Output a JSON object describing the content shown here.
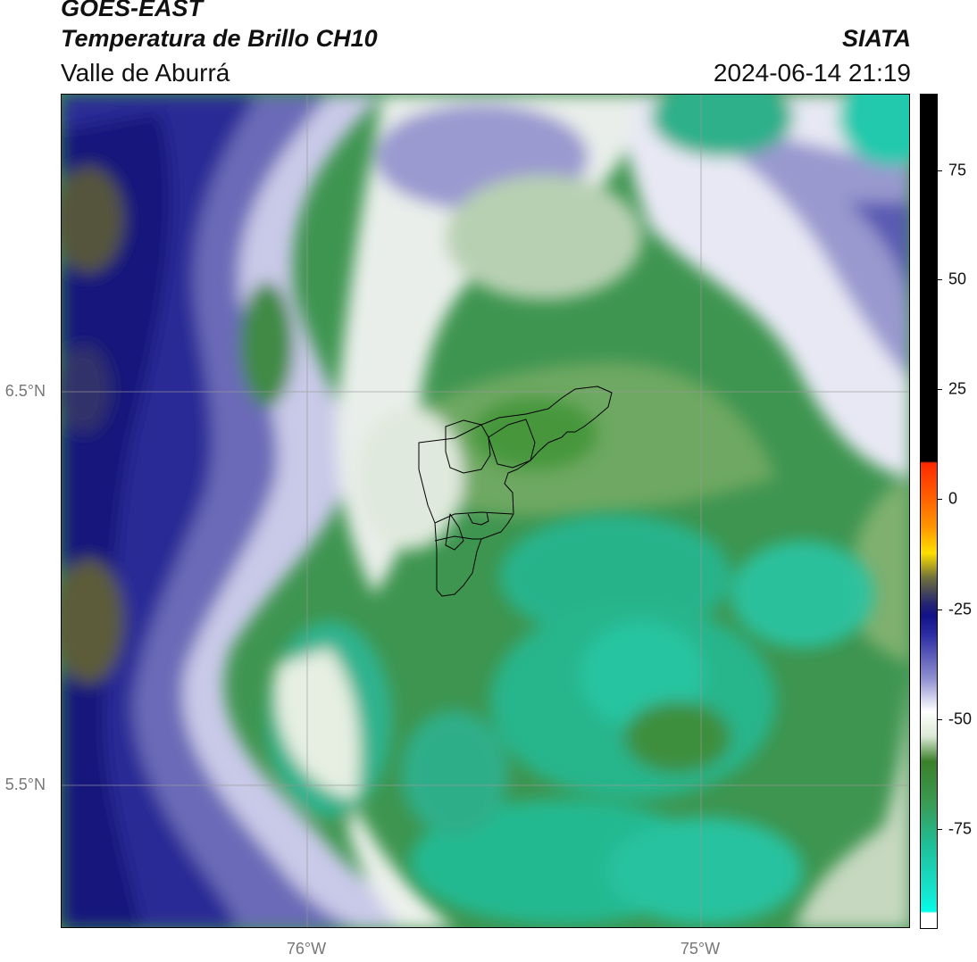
{
  "header": {
    "satellite": "GOES-EAST",
    "product": "Temperatura de Brillo CH10",
    "region": "Valle de Aburrá",
    "institution": "SIATA",
    "datetime": "2024-06-14 21:19"
  },
  "map": {
    "lat_labels": [
      "6.5°N",
      "5.5°N"
    ],
    "lon_labels": [
      "76°W",
      "75°W"
    ]
  },
  "colorbar": {
    "ticks": [
      "75",
      "50",
      "25",
      "0",
      "-25",
      "-50",
      "-75"
    ],
    "colors": {
      "top": "#000000",
      "warm": "#ff2a00",
      "mid": "#ffe600",
      "cold_blue": "#12127a",
      "white": "#ffffff",
      "green": "#3f8f2a",
      "cyan": "#16e6d2"
    }
  }
}
